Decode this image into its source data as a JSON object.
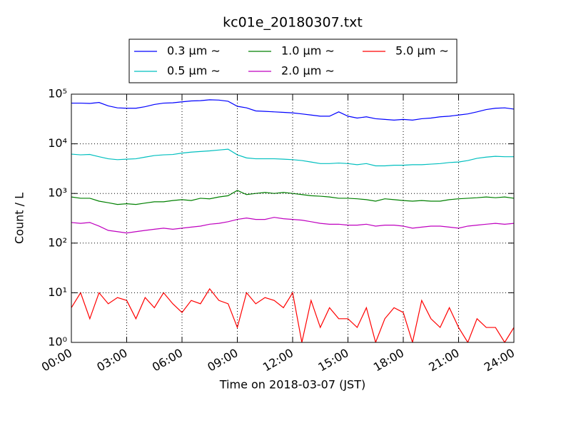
{
  "chart_data": {
    "type": "line",
    "title": "kc01e_20180307.txt",
    "x_label": "Time on 2018-03-07 (JST)",
    "y_label": "Count / L",
    "yscale": "log",
    "grid": true,
    "legend": "top-center-outside",
    "xlim": [
      0,
      24
    ],
    "xticks": [
      {
        "value": 0,
        "label": "00:00"
      },
      {
        "value": 3,
        "label": "03:00"
      },
      {
        "value": 6,
        "label": "06:00"
      },
      {
        "value": 9,
        "label": "09:00"
      },
      {
        "value": 12,
        "label": "12:00"
      },
      {
        "value": 15,
        "label": "15:00"
      },
      {
        "value": 18,
        "label": "18:00"
      },
      {
        "value": 21,
        "label": "21:00"
      },
      {
        "value": 24,
        "label": "24:00"
      }
    ],
    "ylim": [
      1,
      100000
    ],
    "yticks": [
      {
        "value": 1,
        "label": "10⁰"
      },
      {
        "value": 10,
        "label": "10¹"
      },
      {
        "value": 100,
        "label": "10²"
      },
      {
        "value": 1000,
        "label": "10³"
      },
      {
        "value": 10000,
        "label": "10⁴"
      },
      {
        "value": 100000,
        "label": "10⁵"
      }
    ],
    "x": [
      0,
      0.5,
      1,
      1.5,
      2,
      2.5,
      3,
      3.5,
      4,
      4.5,
      5,
      5.5,
      6,
      6.5,
      7,
      7.5,
      8,
      8.5,
      9,
      9.5,
      10,
      10.5,
      11,
      11.5,
      12,
      12.5,
      13,
      13.5,
      14,
      14.5,
      15,
      15.5,
      16,
      16.5,
      17,
      17.5,
      18,
      18.5,
      19,
      19.5,
      20,
      20.5,
      21,
      21.5,
      22,
      22.5,
      23,
      23.5,
      24
    ],
    "series": [
      {
        "name": "0.3 μm ∼",
        "color": "#0000ff",
        "values": [
          66000,
          66000,
          65000,
          68000,
          58000,
          53000,
          52000,
          52000,
          56000,
          62000,
          66000,
          67000,
          70000,
          73000,
          74000,
          77000,
          76000,
          72000,
          57000,
          53000,
          46000,
          45000,
          44000,
          43000,
          42000,
          40000,
          38000,
          36000,
          36000,
          44000,
          36000,
          33000,
          35000,
          32000,
          31000,
          30000,
          31000,
          30000,
          32000,
          33000,
          35000,
          36000,
          38000,
          40000,
          44000,
          49000,
          52000,
          53000,
          50000
        ]
      },
      {
        "name": "0.5 μm ∼",
        "color": "#00bfbf",
        "values": [
          6200,
          6000,
          6100,
          5500,
          5000,
          4800,
          4900,
          5000,
          5400,
          5800,
          6000,
          6100,
          6500,
          6800,
          7000,
          7200,
          7500,
          7800,
          6000,
          5200,
          5000,
          5000,
          5000,
          4900,
          4800,
          4600,
          4300,
          4000,
          4000,
          4100,
          4000,
          3800,
          4000,
          3600,
          3600,
          3700,
          3700,
          3800,
          3800,
          3900,
          4000,
          4200,
          4300,
          4600,
          5100,
          5400,
          5600,
          5500,
          5500
        ]
      },
      {
        "name": "1.0 μm ∼",
        "color": "#008000",
        "values": [
          850,
          800,
          800,
          700,
          650,
          600,
          620,
          600,
          640,
          680,
          680,
          720,
          750,
          720,
          800,
          780,
          850,
          900,
          1150,
          950,
          1000,
          1050,
          1000,
          1050,
          1000,
          950,
          900,
          880,
          850,
          800,
          800,
          780,
          750,
          700,
          780,
          750,
          720,
          700,
          720,
          700,
          700,
          750,
          780,
          800,
          820,
          850,
          820,
          850,
          800
        ]
      },
      {
        "name": "2.0 μm ∼",
        "color": "#bf00bf",
        "values": [
          260,
          250,
          260,
          220,
          180,
          170,
          160,
          170,
          180,
          190,
          200,
          190,
          200,
          210,
          220,
          240,
          250,
          270,
          300,
          320,
          300,
          300,
          330,
          310,
          300,
          290,
          270,
          250,
          240,
          240,
          230,
          230,
          240,
          220,
          230,
          230,
          220,
          200,
          210,
          220,
          220,
          210,
          200,
          220,
          230,
          240,
          250,
          240,
          250
        ]
      },
      {
        "name": "5.0 μm ∼",
        "color": "#ff0000",
        "values": [
          5,
          10,
          3,
          10,
          6,
          8,
          7,
          3,
          8,
          5,
          10,
          6,
          4,
          7,
          6,
          12,
          7,
          6,
          2,
          10,
          6,
          8,
          7,
          5,
          10,
          1,
          7,
          2,
          5,
          3,
          3,
          2,
          5,
          1,
          3,
          5,
          4,
          1,
          7,
          3,
          2,
          5,
          2,
          1,
          3,
          2,
          2,
          1,
          2
        ]
      }
    ]
  }
}
